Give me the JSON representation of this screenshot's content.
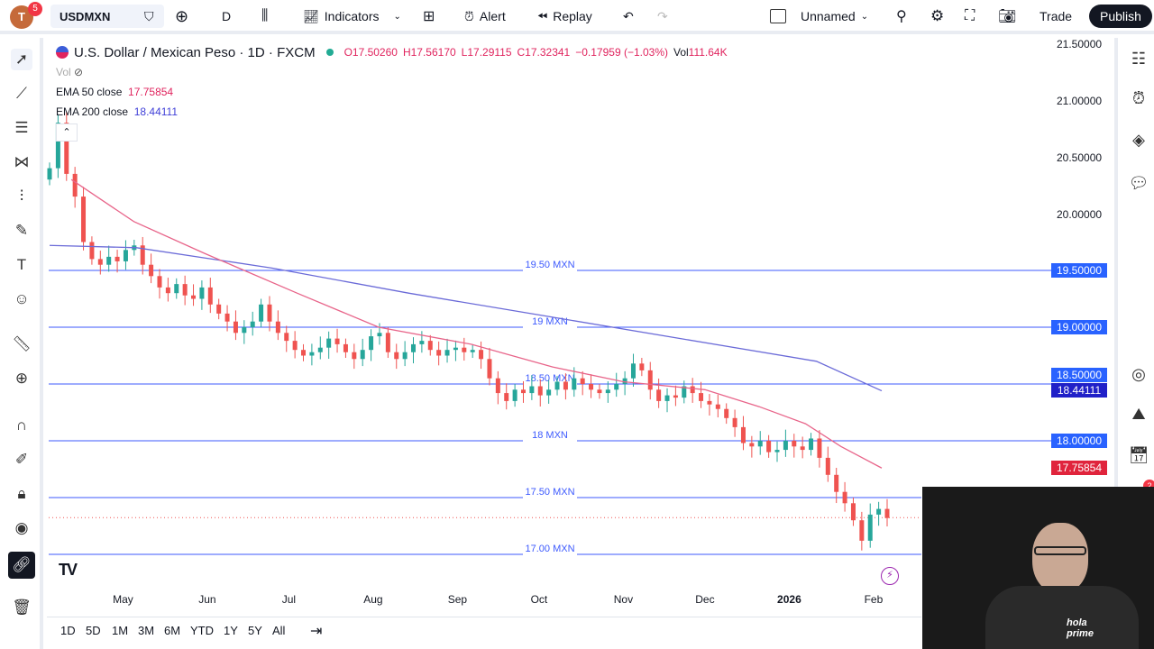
{
  "topbar": {
    "avatar_letter": "T",
    "notif_count": "5",
    "symbol": "USDMXN",
    "interval": "D",
    "indicators": "Indicators",
    "alert": "Alert",
    "replay": "Replay",
    "layout_name": "Unnamed",
    "trade": "Trade",
    "publish": "Publish"
  },
  "legend": {
    "title": "U.S. Dollar / Mexican Peso · 1D · FXCM",
    "open": "O17.50260",
    "high": "H17.56170",
    "low": "L17.29115",
    "close": "C17.32341",
    "change": "−0.17959 (−1.03%)",
    "vol_label": "Vol",
    "vol_value": "111.64K",
    "vol_indicator": "Vol",
    "ema50_label": "EMA 50 close",
    "ema50_value": "17.75854",
    "ema200_label": "EMA 200 close",
    "ema200_value": "18.44111"
  },
  "colors": {
    "up": "#26a69a",
    "down": "#ef5350",
    "ema50": "#e8658a",
    "ema200": "#6b6bd8",
    "hline": "#3d5afe",
    "accent": "#2962ff"
  },
  "price_axis": [
    "21.50000",
    "21.00000",
    "20.50000",
    "20.00000"
  ],
  "price_boxes": {
    "l1950": "19.50000",
    "l1900": "19.00000",
    "l1850": "18.50000",
    "ema200": "18.44111",
    "l1800": "18.00000",
    "ema50": "17.75854"
  },
  "hlines": [
    {
      "price": 19.5,
      "label": "19.50 MXN"
    },
    {
      "price": 19.0,
      "label": "19 MXN"
    },
    {
      "price": 18.5,
      "label": "18.50 MXN"
    },
    {
      "price": 18.0,
      "label": "18 MXN"
    },
    {
      "price": 17.5,
      "label": "17.50 MXN"
    },
    {
      "price": 17.0,
      "label": "17.00 MXN"
    }
  ],
  "months": [
    {
      "label": "May",
      "date": "2025-05-01"
    },
    {
      "label": "Jun",
      "date": "2025-06-01"
    },
    {
      "label": "Jul",
      "date": "2025-07-01"
    },
    {
      "label": "Aug",
      "date": "2025-08-01"
    },
    {
      "label": "Sep",
      "date": "2025-09-01"
    },
    {
      "label": "Oct",
      "date": "2025-10-01"
    },
    {
      "label": "Nov",
      "date": "2025-11-01"
    },
    {
      "label": "Dec",
      "date": "2025-12-01"
    },
    {
      "label": "2026",
      "date": "2026-01-01"
    },
    {
      "label": "Feb",
      "date": "2026-02-01"
    }
  ],
  "ranges": [
    "1D",
    "5D",
    "1M",
    "3M",
    "6M",
    "YTD",
    "1Y",
    "5Y",
    "All"
  ],
  "right_badge": "2",
  "chart_data": {
    "type": "candlestick",
    "ylim": [
      17.0,
      21.5
    ],
    "x_range": [
      "2025-04-04",
      "2026-02-06"
    ],
    "closes": [
      20.4,
      20.8,
      20.35,
      20.15,
      19.75,
      19.6,
      19.55,
      19.62,
      19.58,
      19.68,
      19.72,
      19.55,
      19.45,
      19.35,
      19.3,
      19.38,
      19.28,
      19.25,
      19.35,
      19.2,
      19.12,
      19.05,
      18.95,
      19.0,
      19.05,
      19.2,
      19.05,
      18.95,
      18.88,
      18.8,
      18.75,
      18.78,
      18.82,
      18.9,
      18.85,
      18.78,
      18.72,
      18.8,
      18.92,
      18.95,
      18.78,
      18.72,
      18.78,
      18.85,
      18.88,
      18.8,
      18.75,
      18.8,
      18.82,
      18.78,
      18.8,
      18.72,
      18.55,
      18.42,
      18.35,
      18.45,
      18.42,
      18.48,
      18.4,
      18.45,
      18.52,
      18.45,
      18.55,
      18.5,
      18.45,
      18.42,
      18.45,
      18.5,
      18.55,
      18.68,
      18.62,
      18.45,
      18.35,
      18.4,
      18.38,
      18.48,
      18.42,
      18.35,
      18.32,
      18.28,
      18.2,
      18.12,
      17.98,
      17.95,
      18.0,
      17.9,
      17.92,
      18.0,
      17.95,
      17.92,
      18.02,
      17.85,
      17.7,
      17.55,
      17.45,
      17.3,
      17.12,
      17.35,
      17.4,
      17.32
    ],
    "ema50": [
      [
        "2025-04-12",
        20.3
      ],
      [
        "2025-05-05",
        19.93
      ],
      [
        "2025-05-31",
        19.65
      ],
      [
        "2025-07-04",
        19.3
      ],
      [
        "2025-08-03",
        19.0
      ],
      [
        "2025-09-06",
        18.85
      ],
      [
        "2025-10-06",
        18.65
      ],
      [
        "2025-11-01",
        18.52
      ],
      [
        "2025-12-01",
        18.45
      ],
      [
        "2025-12-21",
        18.3
      ],
      [
        "2026-01-07",
        18.15
      ],
      [
        "2026-01-20",
        17.95
      ],
      [
        "2026-02-04",
        17.76
      ]
    ],
    "ema200": [
      [
        "2025-04-04",
        19.72
      ],
      [
        "2025-05-06",
        19.7
      ],
      [
        "2025-06-25",
        19.52
      ],
      [
        "2025-08-14",
        19.3
      ],
      [
        "2025-10-03",
        19.1
      ],
      [
        "2025-11-22",
        18.9
      ],
      [
        "2026-01-11",
        18.7
      ],
      [
        "2026-02-04",
        18.44
      ]
    ],
    "last_price": 17.32341
  }
}
